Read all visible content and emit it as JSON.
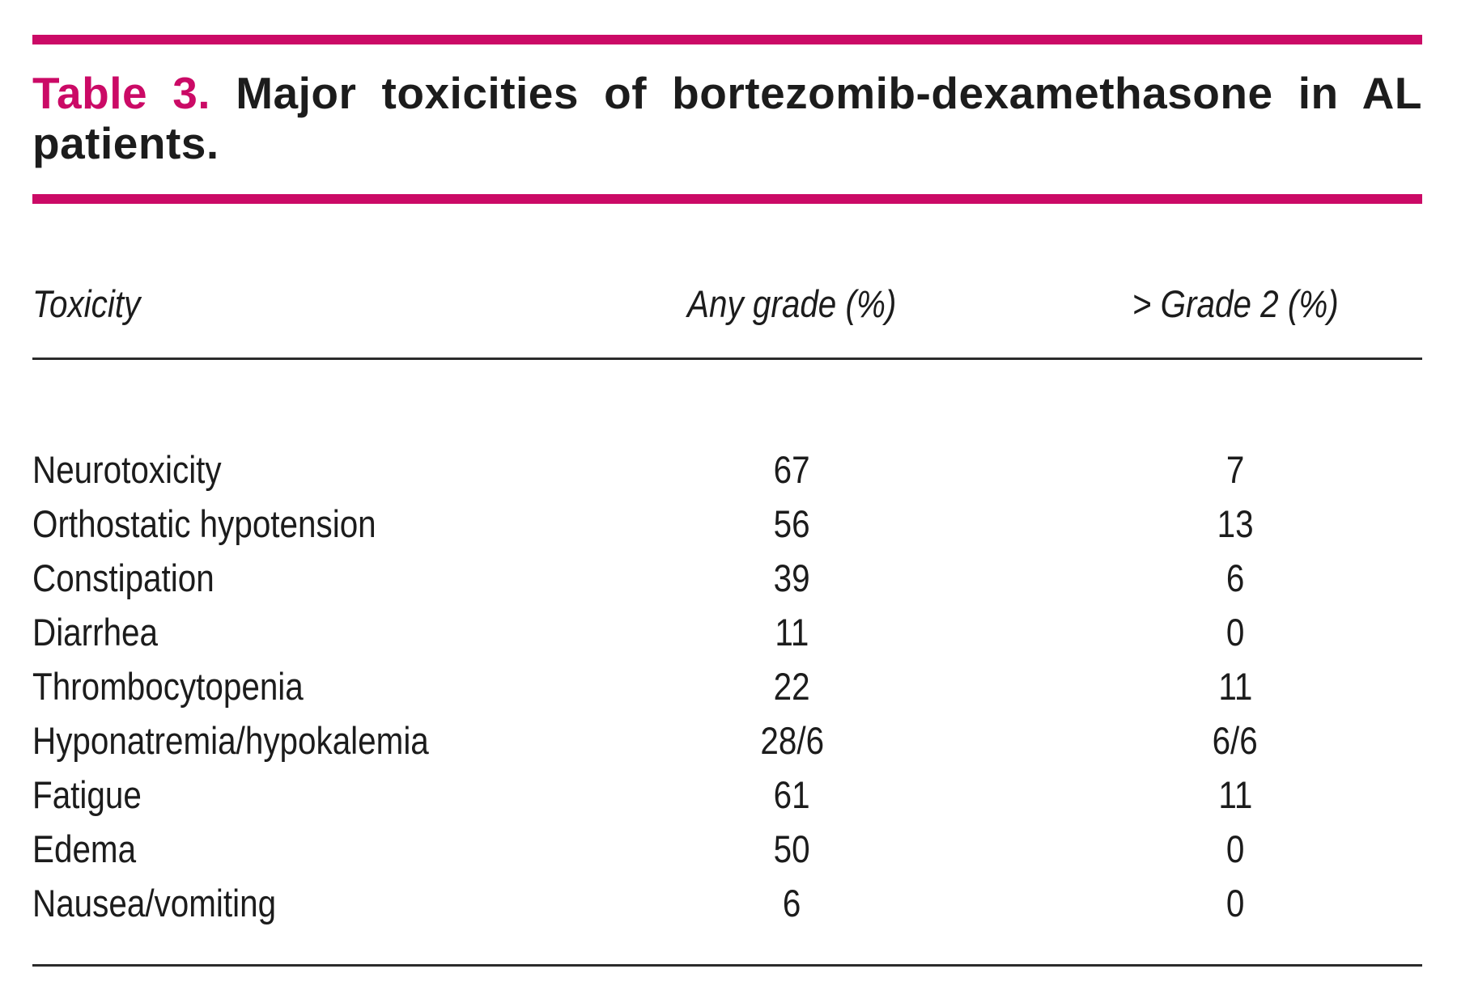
{
  "colors": {
    "accent": "#cb0a66",
    "text": "#1c1c1c",
    "rule": "#2b2b2b",
    "background": "#ffffff"
  },
  "caption": {
    "label": "Table 3.",
    "line1": "Major toxicities of bortezomib-dexamethasone in AL",
    "line2": "patients."
  },
  "table": {
    "columns": [
      "Toxicity",
      "Any grade (%)",
      "> Grade 2 (%)"
    ],
    "rows": [
      {
        "toxicity": "Neurotoxicity",
        "any_grade": "67",
        "grade_2": "7"
      },
      {
        "toxicity": "Orthostatic hypotension",
        "any_grade": "56",
        "grade_2": "13"
      },
      {
        "toxicity": "Constipation",
        "any_grade": "39",
        "grade_2": "6"
      },
      {
        "toxicity": "Diarrhea",
        "any_grade": "11",
        "grade_2": "0"
      },
      {
        "toxicity": "Thrombocytopenia",
        "any_grade": "22",
        "grade_2": "11"
      },
      {
        "toxicity": "Hyponatremia/hypokalemia",
        "any_grade": "28/6",
        "grade_2": "6/6"
      },
      {
        "toxicity": "Fatigue",
        "any_grade": "61",
        "grade_2": "11"
      },
      {
        "toxicity": "Edema",
        "any_grade": "50",
        "grade_2": "0"
      },
      {
        "toxicity": "Nausea/vomiting",
        "any_grade": "6",
        "grade_2": "0"
      }
    ]
  },
  "chart_data": {
    "type": "table",
    "title": "Table 3. Major toxicities of bortezomib-dexamethasone in AL patients.",
    "columns": [
      "Toxicity",
      "Any grade (%)",
      "> Grade 2 (%)"
    ],
    "rows": [
      [
        "Neurotoxicity",
        "67",
        "7"
      ],
      [
        "Orthostatic hypotension",
        "56",
        "13"
      ],
      [
        "Constipation",
        "39",
        "6"
      ],
      [
        "Diarrhea",
        "11",
        "0"
      ],
      [
        "Thrombocytopenia",
        "22",
        "11"
      ],
      [
        "Hyponatremia/hypokalemia",
        "28/6",
        "6/6"
      ],
      [
        "Fatigue",
        "61",
        "11"
      ],
      [
        "Edema",
        "50",
        "0"
      ],
      [
        "Nausea/vomiting",
        "6",
        "0"
      ]
    ]
  }
}
